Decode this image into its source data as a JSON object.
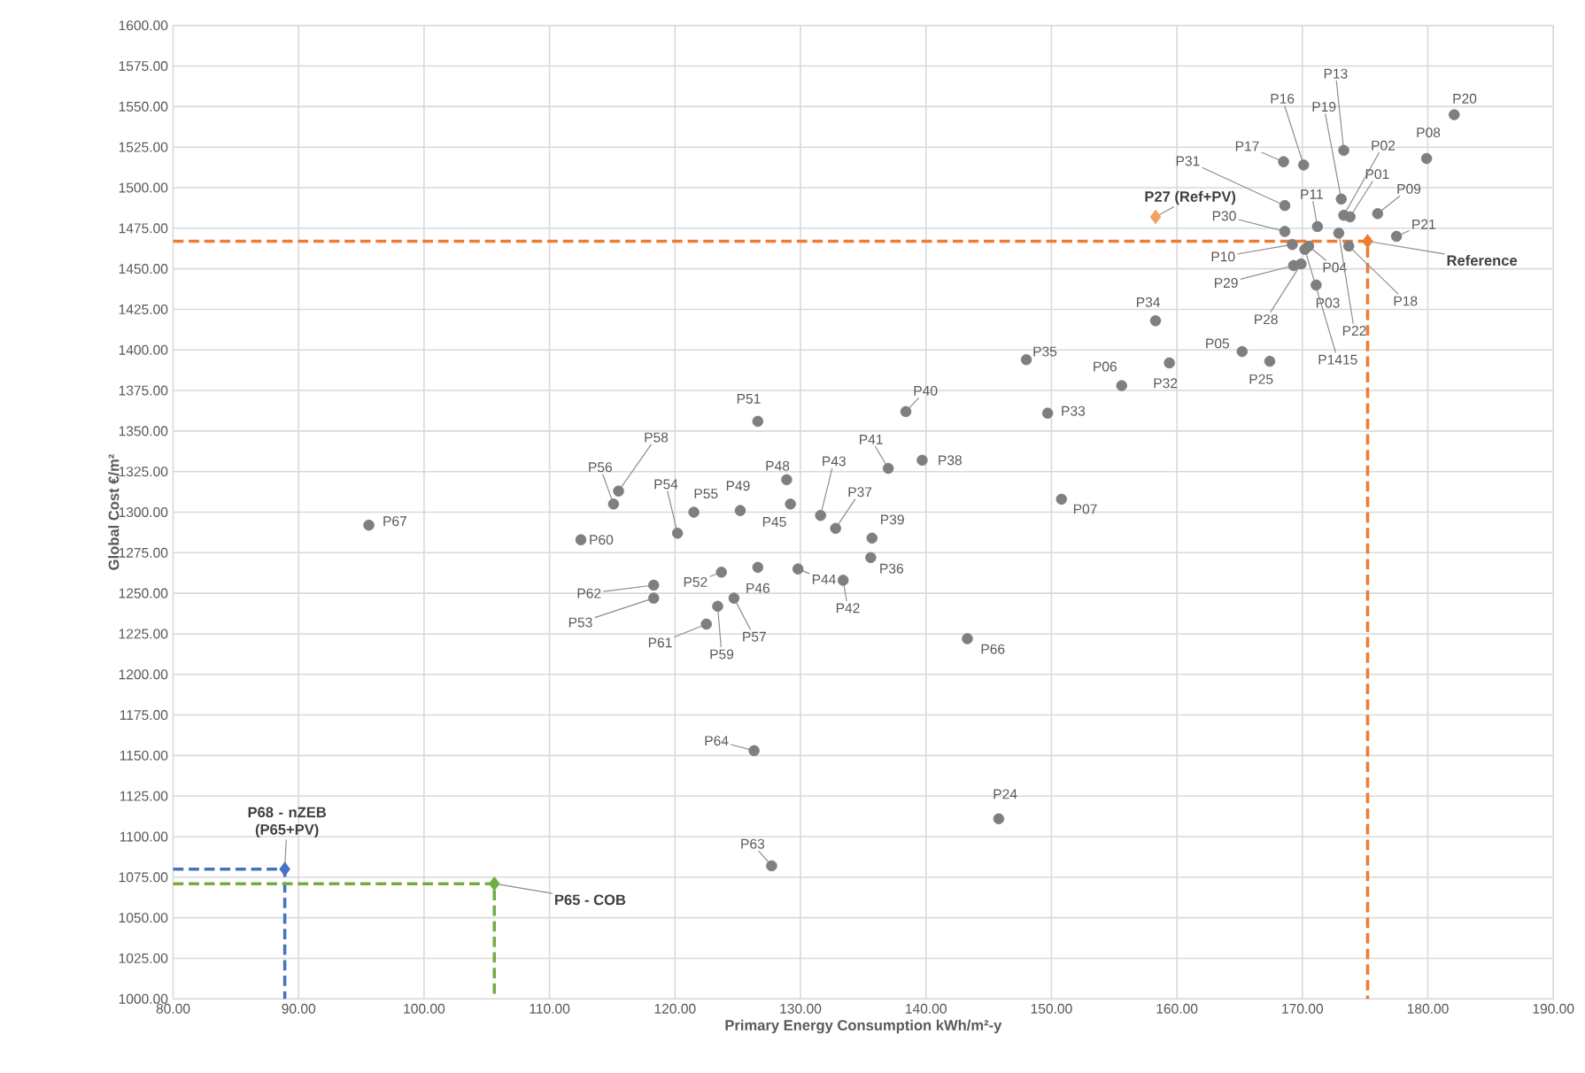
{
  "chart_data": {
    "type": "scatter",
    "xlabel": "Primary Energy Consumption kWh/m²-y",
    "ylabel": "Global Cost €/m²",
    "xlim": [
      80,
      190
    ],
    "ylim": [
      1000,
      1600
    ],
    "xticks": [
      {
        "value": 80,
        "label": "80.00"
      },
      {
        "value": 90,
        "label": "90.00"
      },
      {
        "value": 100,
        "label": "100.00"
      },
      {
        "value": 110,
        "label": "110.00"
      },
      {
        "value": 120,
        "label": "120.00"
      },
      {
        "value": 130,
        "label": "130.00"
      },
      {
        "value": 140,
        "label": "140.00"
      },
      {
        "value": 150,
        "label": "150.00"
      },
      {
        "value": 160,
        "label": "160.00"
      },
      {
        "value": 170,
        "label": "170.00"
      },
      {
        "value": 180,
        "label": "180.00"
      },
      {
        "value": 190,
        "label": "190.00"
      }
    ],
    "yticks": [
      {
        "value": 1000,
        "label": "1000.00"
      },
      {
        "value": 1025,
        "label": "1025.00"
      },
      {
        "value": 1050,
        "label": "1050.00"
      },
      {
        "value": 1075,
        "label": "1075.00"
      },
      {
        "value": 1100,
        "label": "1100.00"
      },
      {
        "value": 1125,
        "label": "1125.00"
      },
      {
        "value": 1150,
        "label": "1150.00"
      },
      {
        "value": 1175,
        "label": "1175.00"
      },
      {
        "value": 1200,
        "label": "1200.00"
      },
      {
        "value": 1225,
        "label": "1225.00"
      },
      {
        "value": 1250,
        "label": "1250.00"
      },
      {
        "value": 1275,
        "label": "1275.00"
      },
      {
        "value": 1300,
        "label": "1300.00"
      },
      {
        "value": 1325,
        "label": "1325.00"
      },
      {
        "value": 1350,
        "label": "1350.00"
      },
      {
        "value": 1375,
        "label": "1375.00"
      },
      {
        "value": 1400,
        "label": "1400.00"
      },
      {
        "value": 1425,
        "label": "1425.00"
      },
      {
        "value": 1450,
        "label": "1450.00"
      },
      {
        "value": 1475,
        "label": "1475.00"
      },
      {
        "value": 1500,
        "label": "1500.00"
      },
      {
        "value": 1525,
        "label": "1525.00"
      },
      {
        "value": 1550,
        "label": "1550.00"
      },
      {
        "value": 1575,
        "label": "1575.00"
      },
      {
        "value": 1600,
        "label": "1600.00"
      }
    ],
    "grid": true,
    "series": [
      {
        "type": "line",
        "marker": "none",
        "line_style": "dashed",
        "color": "#ed7d31",
        "x": [
          80,
          175.2,
          175.2
        ],
        "values": [
          1467,
          1467,
          1000
        ]
      },
      {
        "type": "line",
        "marker": "none",
        "line_style": "dashed",
        "color": "#4472c4",
        "x": [
          80,
          88.9,
          88.9
        ],
        "values": [
          1080,
          1080,
          1000
        ]
      },
      {
        "type": "line",
        "marker": "none",
        "line_style": "dashed",
        "color": "#70ad47",
        "x": [
          80,
          105.6,
          105.6
        ],
        "values": [
          1071,
          1071,
          1000
        ]
      },
      {
        "marker": "circle",
        "color": "#7f7f7f",
        "x": [
          173.3,
          170.1,
          173.1,
          168.5,
          173.3,
          168.6,
          171.2,
          173.8,
          176.0,
          168.6,
          177.5,
          169.2,
          170.5,
          169.3,
          171.1,
          173.7,
          169.9,
          172.9,
          170.2,
          179.9,
          182.1,
          158.3,
          165.2,
          167.4,
          159.4,
          155.6,
          148.0,
          149.7,
          138.4,
          137.0,
          139.7,
          150.8,
          131.6,
          132.8,
          135.7,
          135.6,
          133.4,
          143.3,
          145.8,
          129.8,
          95.6,
          126.6,
          115.5,
          115.1,
          120.2,
          121.5,
          125.2,
          128.9,
          129.2,
          112.5,
          118.3,
          118.3,
          123.7,
          126.6,
          124.7,
          123.4,
          122.5,
          126.3,
          127.7
        ],
        "values": [
          1523,
          1514,
          1493,
          1516,
          1483,
          1489,
          1476,
          1482,
          1484,
          1473,
          1470,
          1465,
          1464,
          1452,
          1440,
          1464,
          1453,
          1472,
          1462,
          1518,
          1545,
          1418,
          1399,
          1393,
          1392,
          1378,
          1394,
          1361,
          1362,
          1327,
          1332,
          1308,
          1298,
          1290,
          1284,
          1272,
          1258,
          1222,
          1111,
          1265,
          1292,
          1356,
          1313,
          1305,
          1287,
          1300,
          1301,
          1320,
          1305,
          1283,
          1255,
          1247,
          1263,
          1266,
          1247,
          1242,
          1231,
          1153,
          1082
        ]
      },
      {
        "name": "Reference",
        "marker": "diamond",
        "color": "#ed7d31",
        "x": [
          175.2
        ],
        "values": [
          1467
        ]
      },
      {
        "name": "P27 (Ref+PV)",
        "marker": "diamond",
        "color": "#f4a15d",
        "x": [
          158.3
        ],
        "values": [
          1482
        ]
      },
      {
        "name": "P68 - nZEB (P65+PV)",
        "marker": "diamond",
        "color": "#4472c4",
        "x": [
          88.9
        ],
        "values": [
          1080
        ]
      },
      {
        "name": "P65 - COB",
        "marker": "diamond",
        "color": "#70ad47",
        "x": [
          105.6
        ],
        "values": [
          1071
        ]
      }
    ],
    "annotations": [
      {
        "text": "P13",
        "x": 173.3,
        "y": 1523
      },
      {
        "text": "P16",
        "x": 170.1,
        "y": 1514
      },
      {
        "text": "P19",
        "x": 173.1,
        "y": 1493
      },
      {
        "text": "P17",
        "x": 168.5,
        "y": 1516
      },
      {
        "text": "P02",
        "x": 173.3,
        "y": 1483
      },
      {
        "text": "P31",
        "x": 168.6,
        "y": 1489
      },
      {
        "text": "P11",
        "x": 171.2,
        "y": 1476
      },
      {
        "text": "P01",
        "x": 173.8,
        "y": 1482
      },
      {
        "text": "P09",
        "x": 176.0,
        "y": 1484
      },
      {
        "text": "P30",
        "x": 168.6,
        "y": 1473
      },
      {
        "text": "P21",
        "x": 177.5,
        "y": 1470
      },
      {
        "text": "P10",
        "x": 169.2,
        "y": 1465
      },
      {
        "text": "P04",
        "x": 170.5,
        "y": 1464
      },
      {
        "text": "P29",
        "x": 169.3,
        "y": 1452
      },
      {
        "text": "P03",
        "x": 171.1,
        "y": 1440
      },
      {
        "text": "P18",
        "x": 173.7,
        "y": 1464
      },
      {
        "text": "P28",
        "x": 169.9,
        "y": 1453
      },
      {
        "text": "P22",
        "x": 172.9,
        "y": 1472
      },
      {
        "text": "P1415",
        "x": 170.2,
        "y": 1462
      },
      {
        "text": "P08",
        "x": 179.9,
        "y": 1518
      },
      {
        "text": "P20",
        "x": 182.1,
        "y": 1545
      },
      {
        "text": "P34",
        "x": 158.3,
        "y": 1418
      },
      {
        "text": "P05",
        "x": 165.2,
        "y": 1399
      },
      {
        "text": "P25",
        "x": 167.4,
        "y": 1393
      },
      {
        "text": "P32",
        "x": 159.4,
        "y": 1392
      },
      {
        "text": "P06",
        "x": 155.6,
        "y": 1378
      },
      {
        "text": "P35",
        "x": 148.0,
        "y": 1394
      },
      {
        "text": "P33",
        "x": 149.7,
        "y": 1361
      },
      {
        "text": "P40",
        "x": 138.4,
        "y": 1362
      },
      {
        "text": "P41",
        "x": 137.0,
        "y": 1327
      },
      {
        "text": "P38",
        "x": 139.7,
        "y": 1332
      },
      {
        "text": "P07",
        "x": 150.8,
        "y": 1308
      },
      {
        "text": "P43",
        "x": 131.6,
        "y": 1298
      },
      {
        "text": "P37",
        "x": 132.8,
        "y": 1290
      },
      {
        "text": "P39",
        "x": 135.7,
        "y": 1284
      },
      {
        "text": "P36",
        "x": 135.6,
        "y": 1272
      },
      {
        "text": "P42",
        "x": 133.4,
        "y": 1258
      },
      {
        "text": "P66",
        "x": 143.3,
        "y": 1222
      },
      {
        "text": "P24",
        "x": 145.8,
        "y": 1111
      },
      {
        "text": "P44",
        "x": 129.8,
        "y": 1265
      },
      {
        "text": "P67",
        "x": 95.6,
        "y": 1292
      },
      {
        "text": "P51",
        "x": 126.6,
        "y": 1356
      },
      {
        "text": "P58",
        "x": 115.5,
        "y": 1313
      },
      {
        "text": "P56",
        "x": 115.1,
        "y": 1305
      },
      {
        "text": "P54",
        "x": 120.2,
        "y": 1287
      },
      {
        "text": "P55",
        "x": 121.5,
        "y": 1300
      },
      {
        "text": "P49",
        "x": 125.2,
        "y": 1301
      },
      {
        "text": "P48",
        "x": 128.9,
        "y": 1320
      },
      {
        "text": "P45",
        "x": 129.2,
        "y": 1305
      },
      {
        "text": "P60",
        "x": 112.5,
        "y": 1283
      },
      {
        "text": "P62",
        "x": 118.3,
        "y": 1255
      },
      {
        "text": "P53",
        "x": 118.3,
        "y": 1247
      },
      {
        "text": "P52",
        "x": 123.7,
        "y": 1263
      },
      {
        "text": "P46",
        "x": 126.6,
        "y": 1266
      },
      {
        "text": "P57",
        "x": 124.7,
        "y": 1247
      },
      {
        "text": "P59",
        "x": 123.4,
        "y": 1242
      },
      {
        "text": "P61",
        "x": 122.5,
        "y": 1231
      },
      {
        "text": "P64",
        "x": 126.3,
        "y": 1153
      },
      {
        "text": "P63",
        "x": 127.7,
        "y": 1082
      }
    ]
  }
}
